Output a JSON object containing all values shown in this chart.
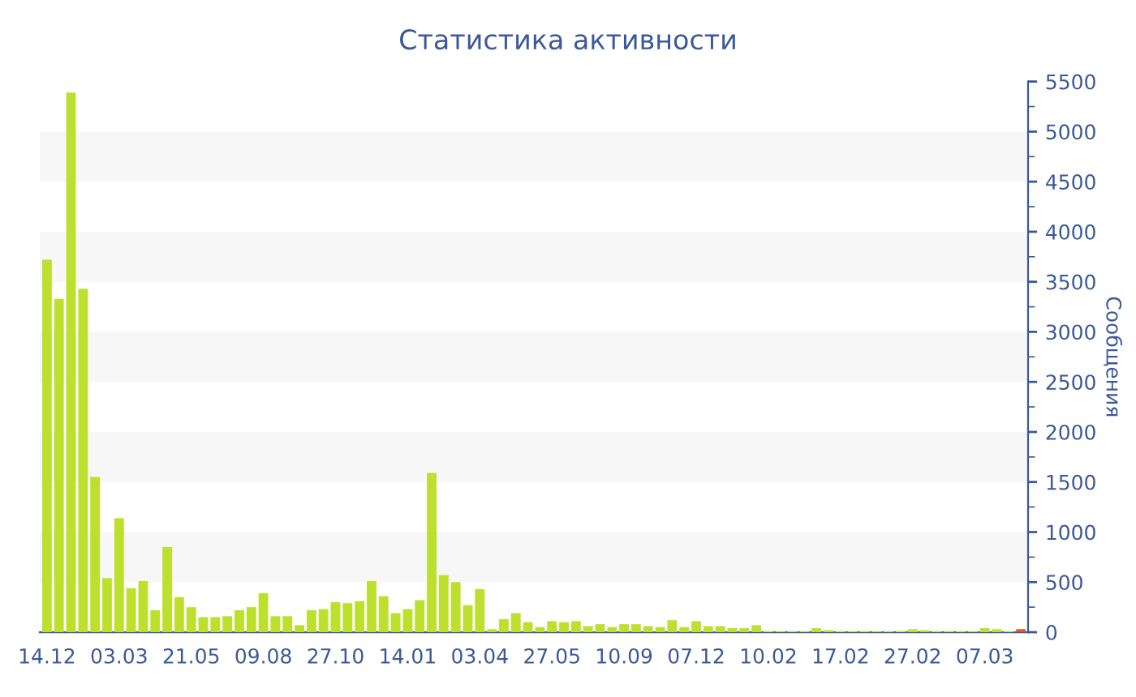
{
  "chart_data": {
    "type": "bar",
    "title": "Статистика активности",
    "ylabel": "Сообщения",
    "categories": [
      "14.12",
      null,
      null,
      null,
      null,
      null,
      "03.03",
      null,
      null,
      null,
      null,
      null,
      "21.05",
      null,
      null,
      null,
      null,
      null,
      "09.08",
      null,
      null,
      null,
      null,
      null,
      "27.10",
      null,
      null,
      null,
      null,
      null,
      "14.01",
      null,
      null,
      null,
      null,
      null,
      "03.04",
      null,
      null,
      null,
      null,
      null,
      "27.05",
      null,
      null,
      null,
      null,
      null,
      "10.09",
      null,
      null,
      null,
      null,
      null,
      "07.12",
      null,
      null,
      null,
      null,
      null,
      "10.02",
      null,
      null,
      null,
      null,
      null,
      "17.02",
      null,
      null,
      null,
      null,
      null,
      "27.02",
      null,
      null,
      null,
      null,
      null,
      "07.03",
      null,
      null,
      null
    ],
    "values": [
      3720,
      3330,
      5390,
      3430,
      1550,
      540,
      1140,
      440,
      510,
      220,
      850,
      350,
      250,
      150,
      150,
      160,
      220,
      250,
      390,
      160,
      160,
      70,
      220,
      230,
      300,
      290,
      310,
      510,
      360,
      190,
      230,
      320,
      1590,
      570,
      500,
      270,
      430,
      30,
      130,
      190,
      100,
      50,
      110,
      100,
      110,
      60,
      80,
      50,
      80,
      80,
      60,
      50,
      120,
      50,
      110,
      60,
      60,
      40,
      40,
      70,
      10,
      10,
      10,
      10,
      40,
      20,
      10,
      10,
      10,
      10,
      10,
      10,
      30,
      20,
      10,
      10,
      10,
      10,
      40,
      30,
      10,
      30
    ],
    "colors": [
      "#bde02f",
      "#bde02f",
      "#bde02f",
      "#bde02f",
      "#bde02f",
      "#bde02f",
      "#bde02f",
      "#bde02f",
      "#bde02f",
      "#bde02f",
      "#bde02f",
      "#bde02f",
      "#bde02f",
      "#bde02f",
      "#bde02f",
      "#bde02f",
      "#bde02f",
      "#bde02f",
      "#bde02f",
      "#bde02f",
      "#bde02f",
      "#bde02f",
      "#bde02f",
      "#bde02f",
      "#bde02f",
      "#bde02f",
      "#bde02f",
      "#bde02f",
      "#bde02f",
      "#bde02f",
      "#bde02f",
      "#bde02f",
      "#bde02f",
      "#bde02f",
      "#bde02f",
      "#bde02f",
      "#bde02f",
      "#bde02f",
      "#bde02f",
      "#bde02f",
      "#bde02f",
      "#bde02f",
      "#bde02f",
      "#bde02f",
      "#bde02f",
      "#bde02f",
      "#bde02f",
      "#bde02f",
      "#bde02f",
      "#bde02f",
      "#bde02f",
      "#bde02f",
      "#bde02f",
      "#bde02f",
      "#bde02f",
      "#bde02f",
      "#bde02f",
      "#bde02f",
      "#bde02f",
      "#bde02f",
      "#bde02f",
      "#bde02f",
      "#bde02f",
      "#bde02f",
      "#bde02f",
      "#bde02f",
      "#bde02f",
      "#bde02f",
      "#bde02f",
      "#bde02f",
      "#bde02f",
      "#bde02f",
      "#bde02f",
      "#bde02f",
      "#bde02f",
      "#bde02f",
      "#bde02f",
      "#bde02f",
      "#bde02f",
      "#bde02f",
      "#bde02f",
      "#e0562a"
    ],
    "ylim": [
      0,
      5500
    ],
    "yticks": [
      0,
      500,
      1000,
      1500,
      2000,
      2500,
      3000,
      3500,
      4000,
      4500,
      5000,
      5500
    ],
    "bands": [
      {
        "axis": "y",
        "from": 500,
        "to": 1000,
        "color": "#f7f7f7"
      },
      {
        "axis": "y",
        "from": 1500,
        "to": 2000,
        "color": "#f7f7f7"
      },
      {
        "axis": "y",
        "from": 2500,
        "to": 3000,
        "color": "#f7f7f7"
      },
      {
        "axis": "y",
        "from": 3500,
        "to": 4000,
        "color": "#f7f7f7"
      },
      {
        "axis": "y",
        "from": 4500,
        "to": 5000,
        "color": "#f7f7f7"
      }
    ]
  }
}
